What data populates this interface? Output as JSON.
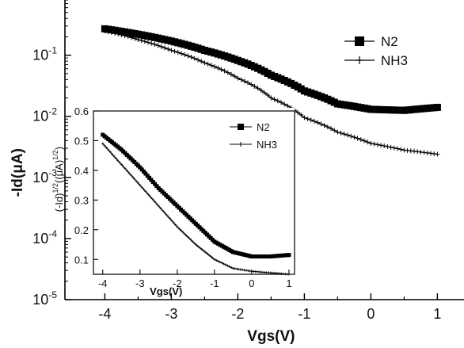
{
  "chart_data": [
    {
      "type": "line",
      "xlabel": "Vgs(V)",
      "ylabel": "-Id(μA)",
      "xlim": [
        -4.6,
        1.4
      ],
      "ylim": [
        1e-05,
        0.8
      ],
      "yscale": "log",
      "xticks": [
        -4,
        -3,
        -2,
        -1,
        0,
        1
      ],
      "xtick_labels": [
        "-4",
        "-3",
        "-2",
        "-1",
        "0",
        "1"
      ],
      "yticks": [
        1e-05,
        0.0001,
        0.001,
        0.01,
        0.1
      ],
      "ytick_labels": [
        {
          "base": "10",
          "exp": "-5"
        },
        {
          "base": "10",
          "exp": "-4"
        },
        {
          "base": "10",
          "exp": "-3"
        },
        {
          "base": "10",
          "exp": "-2"
        },
        {
          "base": "10",
          "exp": "-1"
        }
      ],
      "legend_position": "top-right",
      "x": [
        -4.0,
        -3.5,
        -3.0,
        -2.5,
        -2.0,
        -1.5,
        -1.0,
        -0.5,
        0.0,
        0.5,
        1.0
      ],
      "series": [
        {
          "name": "N2",
          "marker": "square",
          "color": "#000000",
          "values": [
            0.27,
            0.22,
            0.17,
            0.12,
            0.082,
            0.047,
            0.026,
            0.016,
            0.013,
            0.0125,
            0.014
          ]
        },
        {
          "name": "NH3",
          "marker": "plus",
          "color": "#000000",
          "values": [
            0.25,
            0.18,
            0.12,
            0.075,
            0.042,
            0.02,
            0.0095,
            0.0055,
            0.0036,
            0.0028,
            0.0024
          ]
        }
      ]
    },
    {
      "type": "line",
      "xlabel": "Vgs(V)",
      "ylabel_base": "(-Id)",
      "ylabel_sup1": "1/2",
      "ylabel_mid": "((μA)",
      "ylabel_sup2": "1/2",
      "ylabel_end": ")",
      "xlim": [
        -4.25,
        1.15
      ],
      "ylim": [
        0.05,
        0.6
      ],
      "xticks": [
        -4,
        -3,
        -2,
        -1,
        0,
        1
      ],
      "xtick_labels": [
        "-4",
        "-3",
        "-2",
        "-1",
        "0",
        "1"
      ],
      "yticks": [
        0.1,
        0.2,
        0.3,
        0.4,
        0.5,
        0.6
      ],
      "ytick_labels": [
        "0.1",
        "0.2",
        "0.3",
        "0.4",
        "0.5",
        "0.6"
      ],
      "legend_position": "top-right",
      "x": [
        -4.0,
        -3.5,
        -3.0,
        -2.5,
        -2.0,
        -1.5,
        -1.0,
        -0.5,
        0.0,
        0.5,
        1.0
      ],
      "series": [
        {
          "name": "N2",
          "marker": "square",
          "color": "#000000",
          "values": [
            0.52,
            0.47,
            0.41,
            0.34,
            0.28,
            0.22,
            0.16,
            0.125,
            0.11,
            0.11,
            0.115
          ]
        },
        {
          "name": "NH3",
          "marker": "plus",
          "color": "#000000",
          "values": [
            0.49,
            0.42,
            0.35,
            0.28,
            0.21,
            0.15,
            0.1,
            0.07,
            0.06,
            0.055,
            0.05
          ]
        }
      ]
    }
  ]
}
